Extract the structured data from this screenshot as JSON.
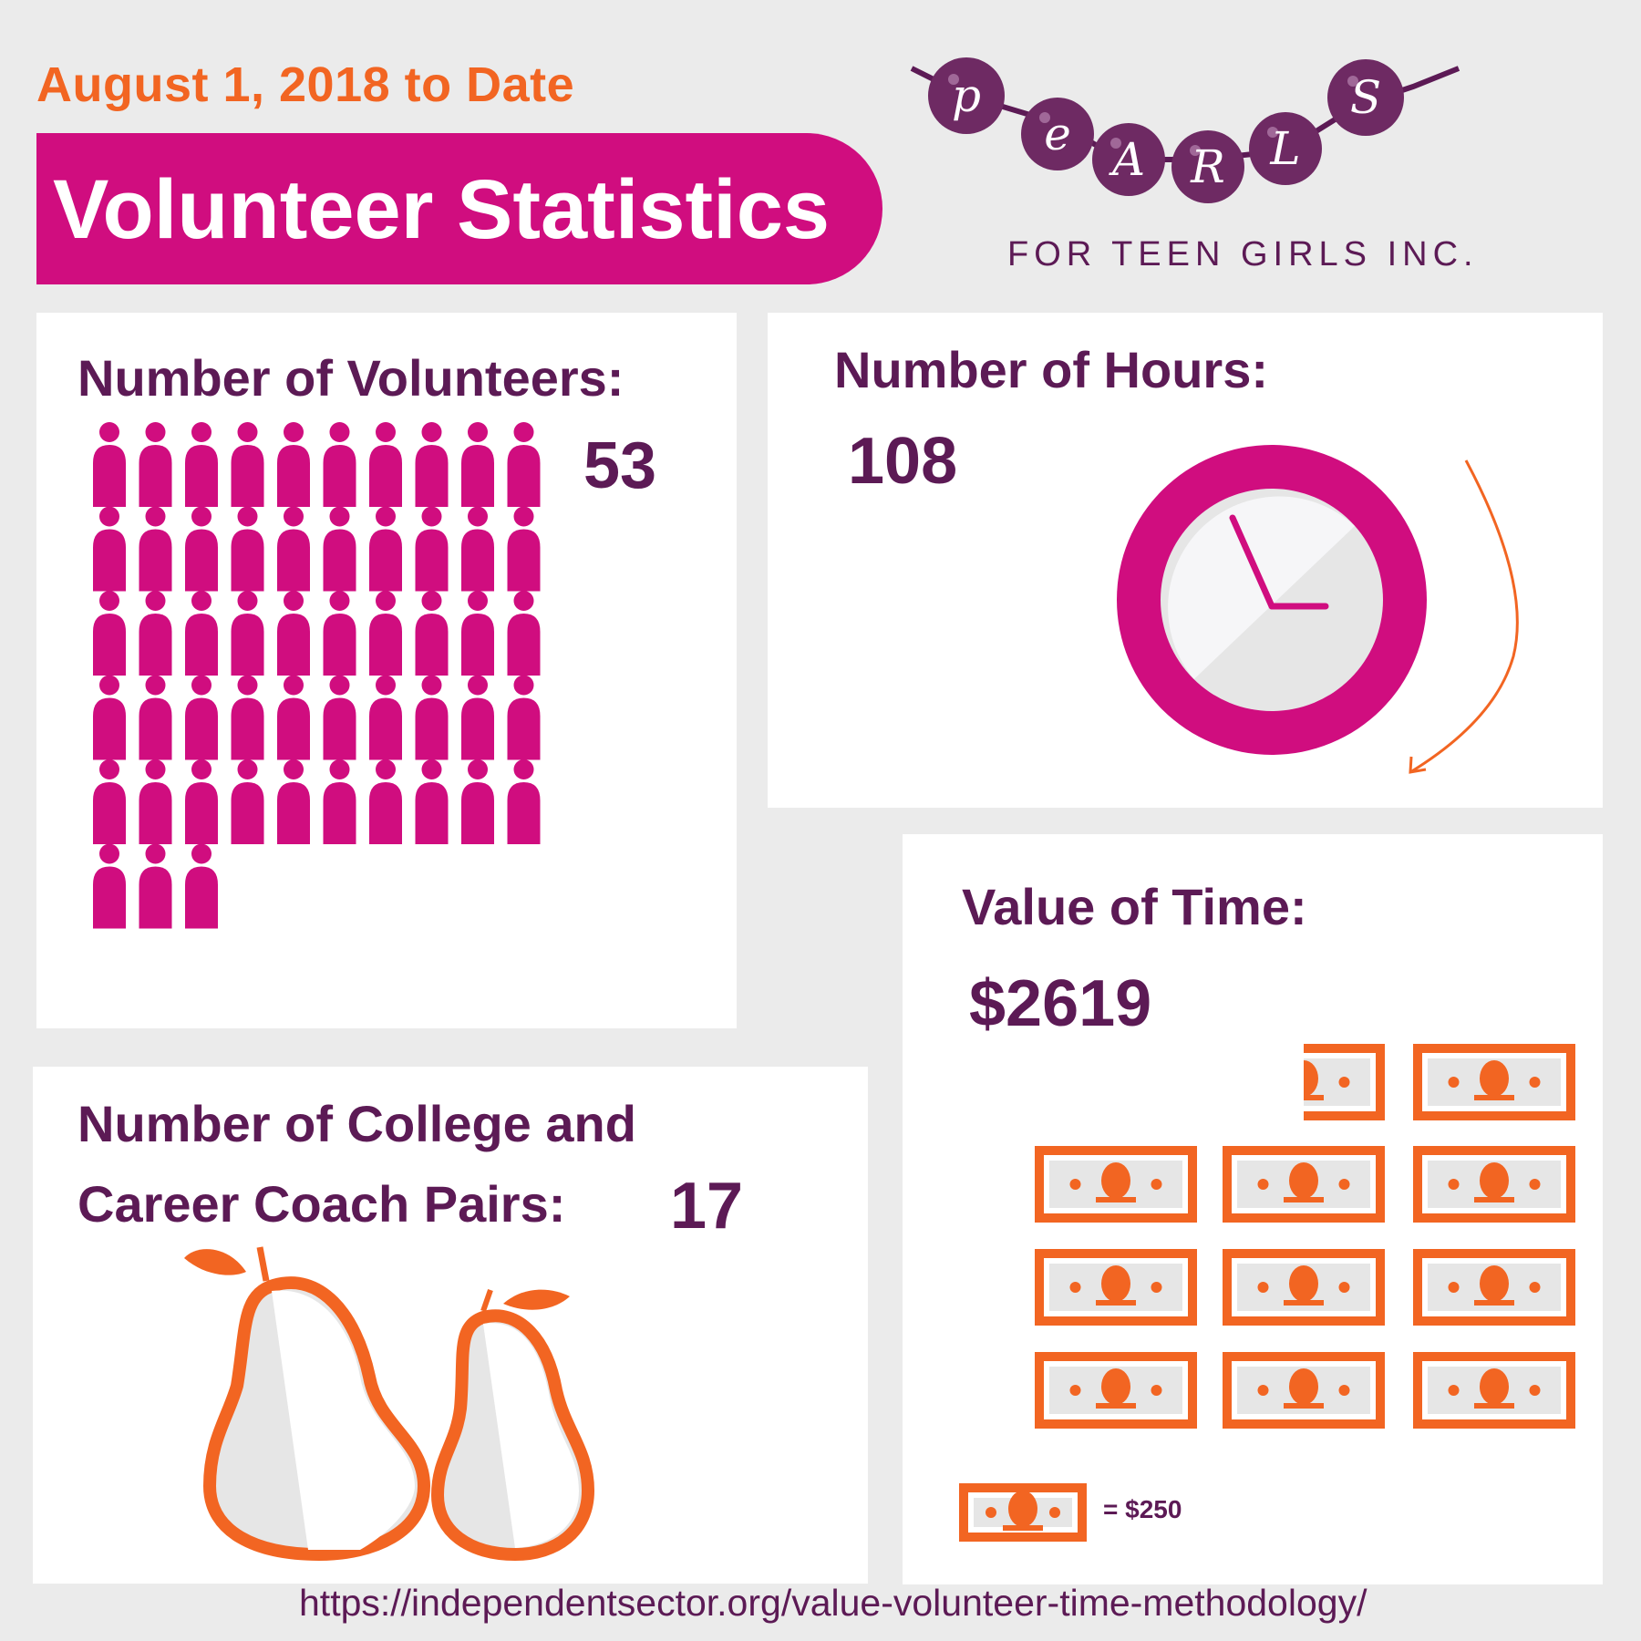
{
  "header": {
    "date_range": "August 1, 2018 to Date",
    "title": "Volunteer Statistics"
  },
  "logo": {
    "letters": [
      "p",
      "e",
      "A",
      "R",
      "L",
      "S"
    ],
    "subtitle": "FOR TEEN GIRLS INC."
  },
  "volunteers": {
    "label": "Number of Volunteers:",
    "value": "53",
    "count": 53
  },
  "hours": {
    "label": "Number of Hours:",
    "value": "108"
  },
  "value_of_time": {
    "label": "Value of Time:",
    "value": "$2619",
    "bill_count": 10.5,
    "legend": "= $250"
  },
  "coach_pairs": {
    "label_line1": "Number of College and",
    "label_line2": "Career Coach Pairs:",
    "value": "17"
  },
  "source_url": "https://independentsector.org/value-volunteer-time-methodology/",
  "colors": {
    "magenta": "#d00d7f",
    "orange": "#f26522",
    "plum": "#5c1a55",
    "background": "#ebebeb"
  }
}
